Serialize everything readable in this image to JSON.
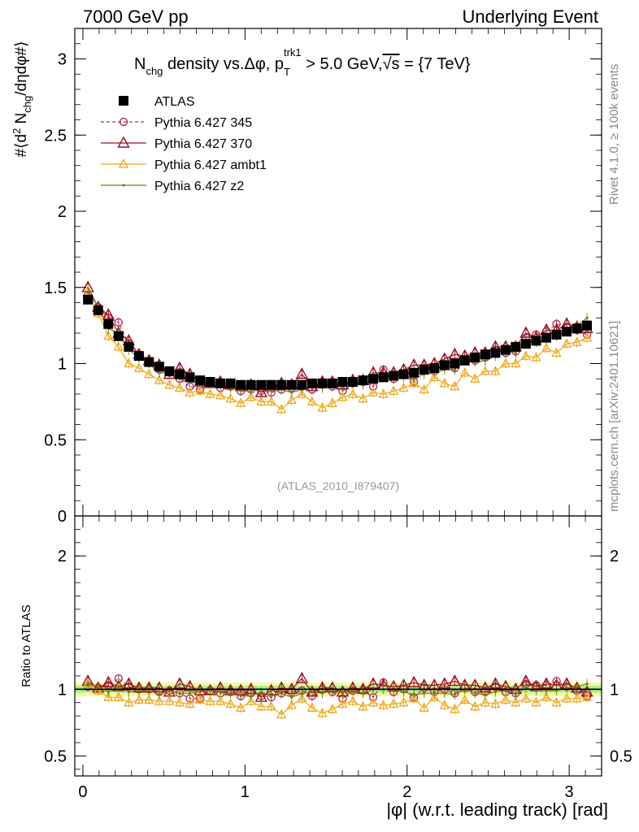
{
  "header": {
    "left": "7000 GeV pp",
    "right": "Underlying Event"
  },
  "side_labels": {
    "rivet": "Rivet 4.1.0, ≥ 100k events",
    "mcplots": "mcplots.cern.ch [arXiv:2401.10621]"
  },
  "colors": {
    "atlas": "#000000",
    "p345": "#b03060",
    "p370": "#9b1020",
    "ambt1": "#f0a818",
    "z2": "#7a7a10",
    "band_inner": "#9ef09e",
    "band_outer": "#fafa8c"
  },
  "chart_data": [
    {
      "type": "line",
      "title": "N_chg density vs.Δφ, p_T^trk1 > 5.0 GeV,√s = {7 TeV}",
      "title_parts": {
        "main": "N",
        "main_sub": "chg",
        "mid": " density vs.Δφ, p",
        "pt_sub": "T",
        "pt_sup": "trk1",
        "tail": " > 5.0 GeV,",
        "sqrt": "√s",
        "end": " = {7 TeV}"
      },
      "ylabel_parts": {
        "a": "#⟨d",
        "sup": "2",
        "b": " N",
        "sub": "chg",
        "c": "/dηdφ#⟩"
      },
      "xlabel": "|φ| (w.r.t. leading track) [rad]",
      "watermark": "(ATLAS_2010_I879407)",
      "xlim": [
        -0.05,
        3.2
      ],
      "ylim": [
        0,
        3.2
      ],
      "y_ticks": [
        0,
        0.5,
        1,
        1.5,
        2,
        2.5,
        3
      ],
      "y_tick_labels": [
        "0",
        "0.5",
        "1",
        "1.5",
        "2",
        "2.5",
        "3"
      ],
      "x": [
        0.031,
        0.094,
        0.157,
        0.22,
        0.283,
        0.346,
        0.408,
        0.471,
        0.534,
        0.597,
        0.66,
        0.723,
        0.785,
        0.848,
        0.911,
        0.974,
        1.037,
        1.1,
        1.162,
        1.225,
        1.288,
        1.351,
        1.414,
        1.477,
        1.539,
        1.602,
        1.665,
        1.728,
        1.791,
        1.854,
        1.917,
        1.979,
        2.042,
        2.105,
        2.168,
        2.231,
        2.294,
        2.356,
        2.419,
        2.482,
        2.545,
        2.608,
        2.67,
        2.733,
        2.796,
        2.859,
        2.922,
        2.985,
        3.048,
        3.11
      ],
      "series": [
        {
          "name": "ATLAS",
          "values": [
            1.42,
            1.35,
            1.26,
            1.18,
            1.11,
            1.05,
            1.01,
            0.98,
            0.95,
            0.93,
            0.91,
            0.89,
            0.88,
            0.87,
            0.87,
            0.86,
            0.86,
            0.86,
            0.86,
            0.86,
            0.86,
            0.86,
            0.87,
            0.87,
            0.87,
            0.88,
            0.88,
            0.89,
            0.9,
            0.91,
            0.92,
            0.93,
            0.94,
            0.96,
            0.97,
            0.99,
            1.0,
            1.02,
            1.04,
            1.06,
            1.07,
            1.09,
            1.11,
            1.13,
            1.15,
            1.17,
            1.19,
            1.21,
            1.23,
            1.25
          ]
        },
        {
          "name": "Pythia 6.427 345",
          "values": [
            1.45,
            1.37,
            1.3,
            1.27,
            1.13,
            1.05,
            1.01,
            0.96,
            0.94,
            0.9,
            0.85,
            0.83,
            0.87,
            0.84,
            0.85,
            0.82,
            0.83,
            0.82,
            0.81,
            0.83,
            0.84,
            0.85,
            0.83,
            0.87,
            0.85,
            0.82,
            0.87,
            0.88,
            0.85,
            0.96,
            0.9,
            0.93,
            0.88,
            0.97,
            0.95,
            0.99,
            0.97,
            1.03,
            1.02,
            1.04,
            1.09,
            1.07,
            1.08,
            1.17,
            1.19,
            1.21,
            1.26,
            1.24,
            1.22,
            1.19
          ]
        },
        {
          "name": "Pythia 6.427 370",
          "values": [
            1.5,
            1.37,
            1.32,
            1.2,
            1.15,
            1.06,
            1.02,
            0.99,
            0.93,
            0.97,
            0.93,
            0.88,
            0.87,
            0.88,
            0.86,
            0.85,
            0.86,
            0.81,
            0.85,
            0.87,
            0.86,
            0.93,
            0.85,
            0.88,
            0.88,
            0.86,
            0.89,
            0.89,
            0.94,
            0.94,
            0.94,
            0.96,
            0.99,
            0.99,
            1.0,
            1.03,
            1.06,
            1.05,
            1.07,
            1.07,
            1.11,
            1.11,
            1.11,
            1.2,
            1.17,
            1.22,
            1.22,
            1.26,
            1.24,
            1.23
          ]
        },
        {
          "name": "Pythia 6.427 ambt1",
          "values": [
            1.48,
            1.33,
            1.18,
            1.11,
            1.0,
            0.97,
            0.93,
            0.89,
            0.86,
            0.84,
            0.81,
            0.82,
            0.8,
            0.79,
            0.77,
            0.74,
            0.78,
            0.75,
            0.75,
            0.7,
            0.76,
            0.8,
            0.75,
            0.71,
            0.74,
            0.78,
            0.8,
            0.77,
            0.81,
            0.8,
            0.82,
            0.84,
            0.87,
            0.83,
            0.91,
            0.87,
            0.85,
            0.94,
            0.9,
            0.95,
            0.95,
            1.0,
            1.0,
            1.05,
            1.04,
            1.1,
            1.07,
            1.13,
            1.14,
            1.17
          ]
        },
        {
          "name": "Pythia 6.427 z2",
          "values": [
            1.47,
            1.38,
            1.23,
            1.2,
            1.09,
            1.04,
            1.0,
            0.94,
            0.94,
            0.9,
            0.88,
            0.87,
            0.87,
            0.85,
            0.84,
            0.82,
            0.82,
            0.84,
            0.82,
            0.83,
            0.81,
            0.83,
            0.85,
            0.84,
            0.86,
            0.85,
            0.87,
            0.86,
            0.9,
            0.91,
            0.92,
            0.91,
            0.9,
            0.93,
            0.94,
            0.96,
            0.96,
            1.02,
            1.01,
            1.02,
            1.05,
            1.1,
            1.07,
            1.14,
            1.14,
            1.16,
            1.18,
            1.22,
            1.25,
            1.3
          ]
        }
      ]
    },
    {
      "type": "line",
      "title": "",
      "ylabel": "Ratio to ATLAS",
      "xlim": [
        -0.05,
        3.2
      ],
      "ylim": [
        0.35,
        2.3
      ],
      "y_ticks": [
        0.5,
        1,
        2
      ],
      "y_tick_labels": [
        "0.5",
        "1",
        "2"
      ],
      "x_ticks": [
        0,
        1,
        2,
        3
      ],
      "x_tick_labels": [
        "0",
        "1",
        "2",
        "3"
      ],
      "band_inner": [
        0.975,
        1.025
      ],
      "band_outer": [
        0.95,
        1.05
      ],
      "x": [
        0.031,
        0.094,
        0.157,
        0.22,
        0.283,
        0.346,
        0.408,
        0.471,
        0.534,
        0.597,
        0.66,
        0.723,
        0.785,
        0.848,
        0.911,
        0.974,
        1.037,
        1.1,
        1.162,
        1.225,
        1.288,
        1.351,
        1.414,
        1.477,
        1.539,
        1.602,
        1.665,
        1.728,
        1.791,
        1.854,
        1.917,
        1.979,
        2.042,
        2.105,
        2.168,
        2.231,
        2.294,
        2.356,
        2.419,
        2.482,
        2.545,
        2.608,
        2.67,
        2.733,
        2.796,
        2.859,
        2.922,
        2.985,
        3.048,
        3.11
      ],
      "series": [
        {
          "name": "ATLAS",
          "values": [
            1,
            1,
            1,
            1,
            1,
            1,
            1,
            1,
            1,
            1,
            1,
            1,
            1,
            1,
            1,
            1,
            1,
            1,
            1,
            1,
            1,
            1,
            1,
            1,
            1,
            1,
            1,
            1,
            1,
            1,
            1,
            1,
            1,
            1,
            1,
            1,
            1,
            1,
            1,
            1,
            1,
            1,
            1,
            1,
            1,
            1,
            1,
            1,
            1,
            1
          ]
        },
        {
          "name": "Pythia 6.427 345",
          "values": [
            1.02,
            1.01,
            1.03,
            1.08,
            1.02,
            1.0,
            1.0,
            0.98,
            0.99,
            0.97,
            0.93,
            0.93,
            0.99,
            0.97,
            0.98,
            0.95,
            0.97,
            0.95,
            0.94,
            0.97,
            0.98,
            0.99,
            0.95,
            1.0,
            0.98,
            0.93,
            0.99,
            0.99,
            0.94,
            1.05,
            0.98,
            1.0,
            0.94,
            1.01,
            0.98,
            1.0,
            0.97,
            1.01,
            0.98,
            0.98,
            1.02,
            0.98,
            0.97,
            1.04,
            1.03,
            1.03,
            1.06,
            1.02,
            0.99,
            0.95
          ]
        },
        {
          "name": "Pythia 6.427 370",
          "values": [
            1.06,
            1.01,
            1.05,
            1.02,
            1.04,
            1.01,
            1.01,
            1.01,
            0.98,
            1.04,
            1.02,
            0.99,
            0.99,
            1.01,
            0.99,
            0.99,
            1.0,
            0.94,
            0.99,
            1.01,
            1.0,
            1.08,
            0.98,
            1.01,
            1.01,
            0.98,
            1.01,
            1.0,
            1.04,
            1.03,
            1.02,
            1.03,
            1.05,
            1.03,
            1.03,
            1.04,
            1.06,
            1.03,
            1.03,
            1.01,
            1.04,
            1.02,
            1.0,
            1.06,
            1.02,
            1.04,
            1.03,
            1.04,
            1.01,
            0.98
          ]
        },
        {
          "name": "Pythia 6.427 ambt1",
          "values": [
            1.04,
            0.99,
            0.94,
            0.94,
            0.9,
            0.92,
            0.92,
            0.91,
            0.91,
            0.9,
            0.89,
            0.92,
            0.91,
            0.91,
            0.89,
            0.86,
            0.91,
            0.87,
            0.87,
            0.81,
            0.88,
            0.93,
            0.86,
            0.82,
            0.85,
            0.89,
            0.91,
            0.87,
            0.9,
            0.88,
            0.89,
            0.9,
            0.93,
            0.86,
            0.94,
            0.88,
            0.85,
            0.92,
            0.87,
            0.9,
            0.89,
            0.92,
            0.9,
            0.93,
            0.9,
            0.94,
            0.9,
            0.93,
            0.93,
            0.94
          ]
        },
        {
          "name": "Pythia 6.427 z2",
          "values": [
            1.04,
            1.02,
            0.98,
            1.02,
            0.98,
            0.99,
            0.99,
            0.96,
            0.99,
            0.97,
            0.97,
            0.98,
            0.99,
            0.98,
            0.97,
            0.95,
            0.95,
            0.98,
            0.95,
            0.97,
            0.94,
            0.97,
            0.98,
            0.97,
            0.99,
            0.97,
            0.99,
            0.97,
            1.0,
            1.0,
            1.0,
            0.98,
            0.96,
            0.97,
            0.97,
            0.97,
            0.96,
            1.0,
            0.97,
            0.96,
            0.98,
            1.01,
            0.96,
            1.01,
            0.99,
            0.99,
            0.99,
            1.01,
            1.02,
            1.04
          ]
        }
      ]
    }
  ]
}
